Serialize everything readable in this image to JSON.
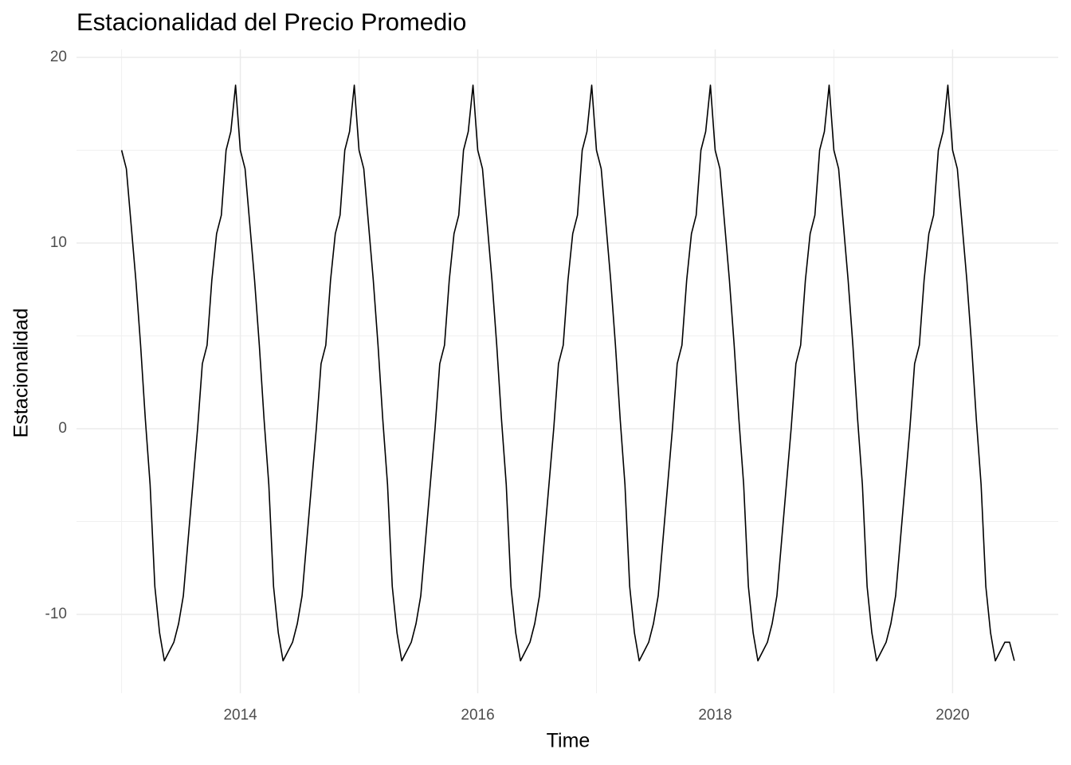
{
  "chart_data": {
    "type": "line",
    "title": "Estacionalidad del Precio Promedio",
    "x_label": "Time",
    "y_label": "Estacionalidad",
    "x": [
      2013,
      2013.04,
      2013.08,
      2013.12,
      2013.16,
      2013.2,
      2013.24,
      2013.28,
      2013.32,
      2013.36,
      2013.4,
      2013.44,
      2013.48,
      2013.52,
      2013.56,
      2013.6,
      2013.64,
      2013.68,
      2013.72,
      2013.76,
      2013.8,
      2013.84,
      2013.88,
      2013.92,
      2013.96,
      2014,
      2014.04,
      2014.08,
      2014.12,
      2014.16,
      2014.2,
      2014.24,
      2014.28,
      2014.32,
      2014.36,
      2014.4,
      2014.44,
      2014.48,
      2014.52,
      2014.56,
      2014.6,
      2014.64,
      2014.68,
      2014.72,
      2014.76,
      2014.8,
      2014.84,
      2014.88,
      2014.92,
      2014.96,
      2015,
      2015.04,
      2015.08,
      2015.12,
      2015.16,
      2015.2,
      2015.24,
      2015.28,
      2015.32,
      2015.36,
      2015.4,
      2015.44,
      2015.48,
      2015.52,
      2015.56,
      2015.6,
      2015.64,
      2015.68,
      2015.72,
      2015.76,
      2015.8,
      2015.84,
      2015.88,
      2015.92,
      2015.96,
      2016,
      2016.04,
      2016.08,
      2016.12,
      2016.16,
      2016.2,
      2016.24,
      2016.28,
      2016.32,
      2016.36,
      2016.4,
      2016.44,
      2016.48,
      2016.52,
      2016.56,
      2016.6,
      2016.64,
      2016.68,
      2016.72,
      2016.76,
      2016.8,
      2016.84,
      2016.88,
      2016.92,
      2016.96,
      2017,
      2017.04,
      2017.08,
      2017.12,
      2017.16,
      2017.2,
      2017.24,
      2017.28,
      2017.32,
      2017.36,
      2017.4,
      2017.44,
      2017.48,
      2017.52,
      2017.56,
      2017.6,
      2017.64,
      2017.68,
      2017.72,
      2017.76,
      2017.8,
      2017.84,
      2017.88,
      2017.92,
      2017.96,
      2018,
      2018.04,
      2018.08,
      2018.12,
      2018.16,
      2018.2,
      2018.24,
      2018.28,
      2018.32,
      2018.36,
      2018.4,
      2018.44,
      2018.48,
      2018.52,
      2018.56,
      2018.6,
      2018.64,
      2018.68,
      2018.72,
      2018.76,
      2018.8,
      2018.84,
      2018.88,
      2018.92,
      2018.96,
      2019,
      2019.04,
      2019.08,
      2019.12,
      2019.16,
      2019.2,
      2019.24,
      2019.28,
      2019.32,
      2019.36,
      2019.4,
      2019.44,
      2019.48,
      2019.52,
      2019.56,
      2019.6,
      2019.64,
      2019.68,
      2019.72,
      2019.76,
      2019.8,
      2019.84,
      2019.88,
      2019.92,
      2019.96,
      2020,
      2020.04,
      2020.08,
      2020.12,
      2020.16,
      2020.2,
      2020.24,
      2020.28,
      2020.32,
      2020.36,
      2020.4,
      2020.44,
      2020.48,
      2020.52
    ],
    "series": [
      {
        "color": "#000000",
        "values": [
          15,
          14,
          11,
          8,
          4.5,
          0.5,
          -3,
          -8.5,
          -11,
          -12.5,
          -12,
          -11.5,
          -10.5,
          -9,
          -6,
          -3,
          0,
          3.5,
          4.5,
          8,
          10.5,
          11.5,
          15,
          16,
          18.5,
          15,
          14,
          11,
          8,
          4.5,
          0.5,
          -3,
          -8.5,
          -11,
          -12.5,
          -12,
          -11.5,
          -10.5,
          -9,
          -6,
          -3,
          0,
          3.5,
          4.5,
          8,
          10.5,
          11.5,
          15,
          16,
          18.5,
          15,
          14,
          11,
          8,
          4.5,
          0.5,
          -3,
          -8.5,
          -11,
          -12.5,
          -12,
          -11.5,
          -10.5,
          -9,
          -6,
          -3,
          0,
          3.5,
          4.5,
          8,
          10.5,
          11.5,
          15,
          16,
          18.5,
          15,
          14,
          11,
          8,
          4.5,
          0.5,
          -3,
          -8.5,
          -11,
          -12.5,
          -12,
          -11.5,
          -10.5,
          -9,
          -6,
          -3,
          0,
          3.5,
          4.5,
          8,
          10.5,
          11.5,
          15,
          16,
          18.5,
          15,
          14,
          11,
          8,
          4.5,
          0.5,
          -3,
          -8.5,
          -11,
          -12.5,
          -12,
          -11.5,
          -10.5,
          -9,
          -6,
          -3,
          0,
          3.5,
          4.5,
          8,
          10.5,
          11.5,
          15,
          16,
          18.5,
          15,
          14,
          11,
          8,
          4.5,
          0.5,
          -3,
          -8.5,
          -11,
          -12.5,
          -12,
          -11.5,
          -10.5,
          -9,
          -6,
          -3,
          0,
          3.5,
          4.5,
          8,
          10.5,
          11.5,
          15,
          16,
          18.5,
          15,
          14,
          11,
          8,
          4.5,
          0.5,
          -3,
          -8.5,
          -11,
          -12.5,
          -12,
          -11.5,
          -10.5,
          -9,
          -6,
          -3,
          0,
          3.5,
          4.5,
          8,
          10.5,
          11.5,
          15,
          16,
          18.5,
          15,
          14,
          11,
          8,
          4.5,
          0.5,
          -3,
          -8.5,
          -11,
          -12.5,
          -12,
          -11.5,
          -11.5,
          -12.5
        ]
      }
    ],
    "xlim": [
      2012.62,
      2020.89
    ],
    "xticks": [
      2014,
      2016,
      2018,
      2020
    ],
    "ylim": [
      -14.25,
      20.43
    ],
    "yticks": [
      -10,
      0,
      10,
      20
    ],
    "grid": true
  }
}
